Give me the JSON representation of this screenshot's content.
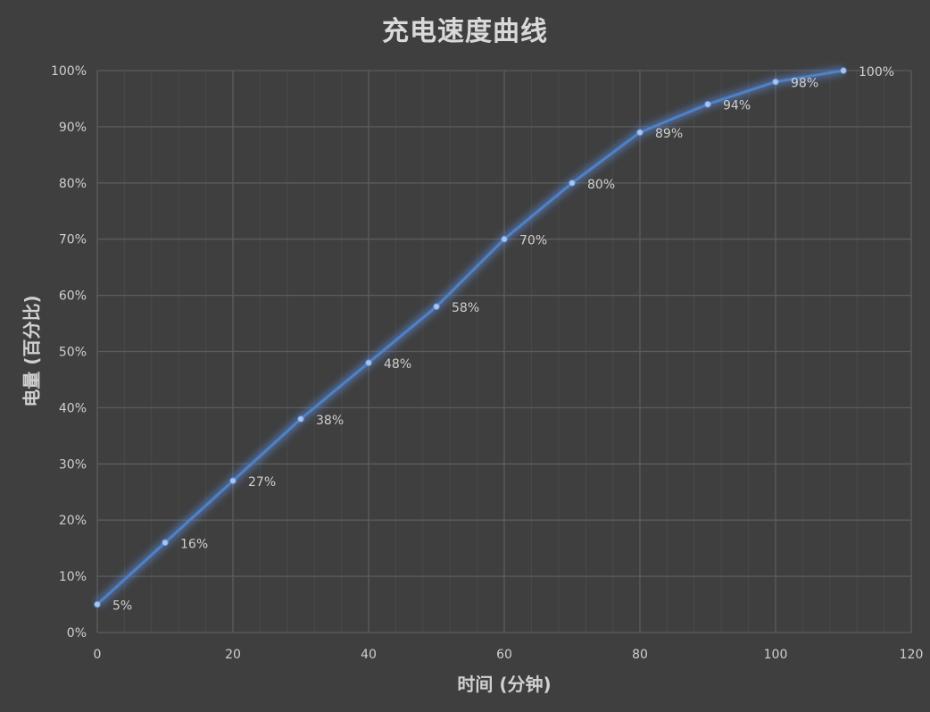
{
  "chart_data": {
    "type": "line",
    "title": "充电速度曲线",
    "xlabel": "时间 (分钟)",
    "ylabel": "电量 (百分比)",
    "xlim": [
      0,
      120
    ],
    "ylim": [
      0,
      100
    ],
    "x_ticks": [
      "0",
      "20",
      "40",
      "60",
      "80",
      "100",
      "120"
    ],
    "y_ticks": [
      "0%",
      "10%",
      "20%",
      "30%",
      "40%",
      "50%",
      "60%",
      "70%",
      "80%",
      "90%",
      "100%"
    ],
    "grid": true,
    "series": [
      {
        "x": [
          0,
          10,
          20,
          30,
          40,
          50,
          60,
          70,
          80,
          90,
          100,
          110
        ],
        "values": [
          5,
          16,
          27,
          38,
          48,
          58,
          70,
          80,
          89,
          94,
          98,
          100
        ],
        "labels": [
          "5%",
          "16%",
          "27%",
          "38%",
          "48%",
          "58%",
          "70%",
          "80%",
          "89%",
          "94%",
          "98%",
          "100%"
        ],
        "color": "#4f81c7"
      }
    ]
  }
}
